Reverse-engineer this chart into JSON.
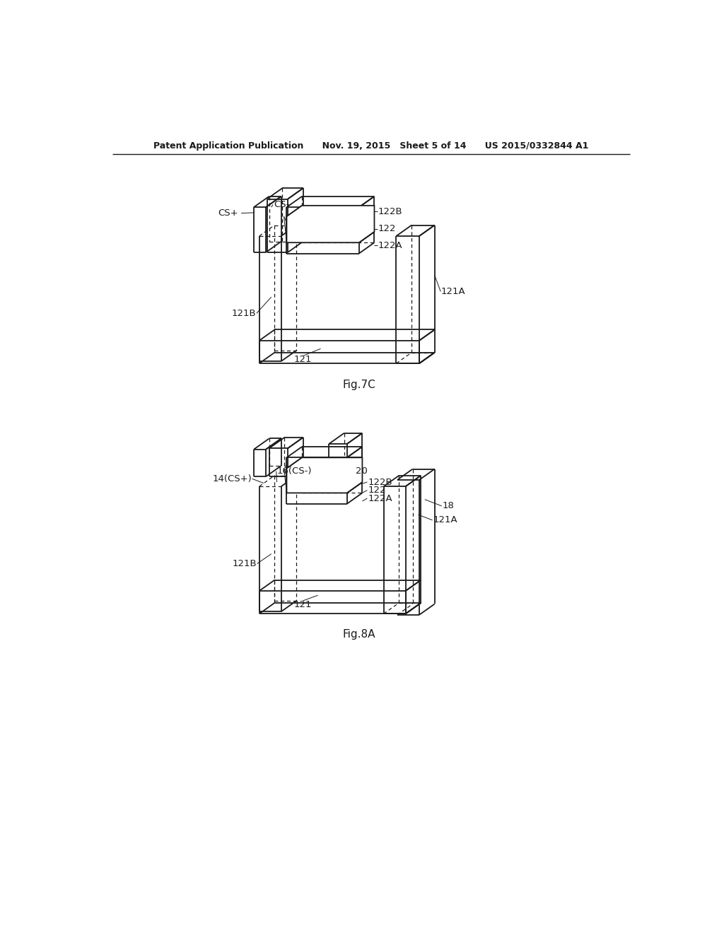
{
  "bg_color": "#ffffff",
  "line_color": "#1a1a1a",
  "header_text": "Patent Application Publication",
  "header_date": "Nov. 19, 2015",
  "header_sheet": "Sheet 5 of 14",
  "header_patent": "US 2015/0332844 A1",
  "fig7c_label": "Fig.7C",
  "fig8a_label": "Fig.8A"
}
